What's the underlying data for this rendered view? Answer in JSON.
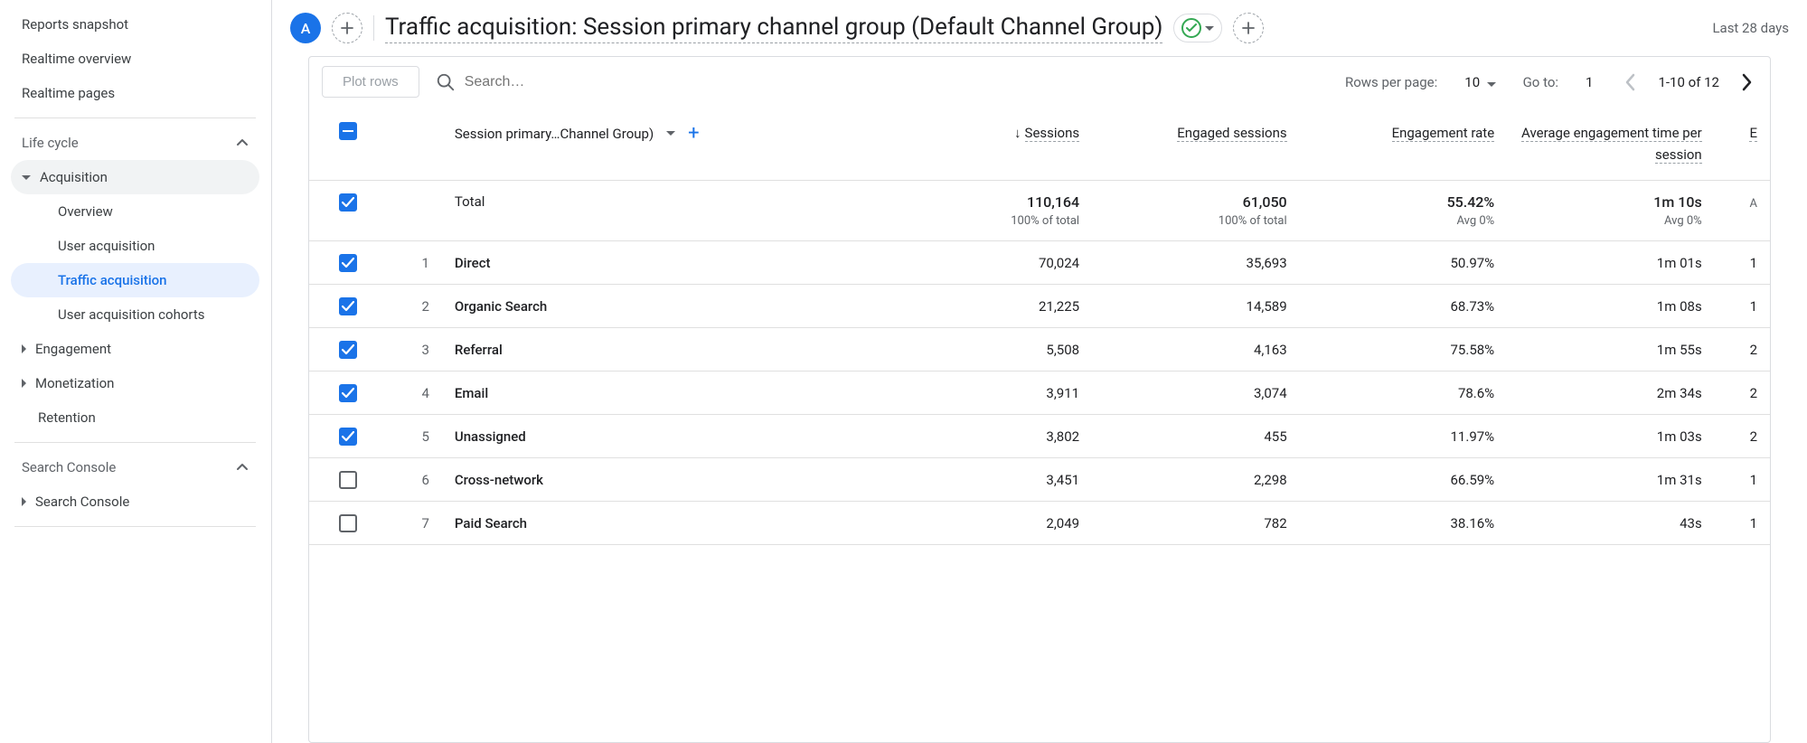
{
  "sidebar": {
    "items": [
      {
        "label": "Reports snapshot",
        "type": "item",
        "indent": 0
      },
      {
        "label": "Realtime overview",
        "type": "item",
        "indent": 0
      },
      {
        "label": "Realtime pages",
        "type": "item",
        "indent": 0
      },
      {
        "type": "divider"
      },
      {
        "label": "Life cycle",
        "type": "section",
        "expanded": true
      },
      {
        "label": "Acquisition",
        "type": "item",
        "indent": 1,
        "hasCaret": "down",
        "selected": true
      },
      {
        "label": "Overview",
        "type": "item",
        "indent": 2
      },
      {
        "label": "User acquisition",
        "type": "item",
        "indent": 2
      },
      {
        "label": "Traffic acquisition",
        "type": "item",
        "indent": 2,
        "active": true
      },
      {
        "label": "User acquisition cohorts",
        "type": "item",
        "indent": 2
      },
      {
        "label": "Engagement",
        "type": "item",
        "indent": 1,
        "hasCaret": "right"
      },
      {
        "label": "Monetization",
        "type": "item",
        "indent": 1,
        "hasCaret": "right"
      },
      {
        "label": "Retention",
        "type": "item",
        "indent": 1
      },
      {
        "type": "divider"
      },
      {
        "label": "Search Console",
        "type": "section",
        "expanded": true
      },
      {
        "label": "Search Console",
        "type": "item",
        "indent": 1,
        "hasCaret": "right"
      },
      {
        "type": "divider"
      }
    ]
  },
  "header": {
    "avatar": "A",
    "title": "Traffic acquisition: Session primary channel group (Default Channel Group)",
    "dateRange": "Last 28 days"
  },
  "toolbar": {
    "plotLabel": "Plot rows",
    "searchPlaceholder": "Search…",
    "rowsPerPageLabel": "Rows per page:",
    "rowsPerPageValue": "10",
    "goToLabel": "Go to:",
    "goToValue": "1",
    "pageInfo": "1-10 of 12"
  },
  "table": {
    "dimensionHeader": "Session primary…Channel Group)",
    "columns": [
      {
        "label": "Sessions",
        "sorted": true
      },
      {
        "label": "Engaged sessions"
      },
      {
        "label": "Engagement rate"
      },
      {
        "label": "Average engagement time per session"
      },
      {
        "label": "E"
      }
    ],
    "totalLabel": "Total",
    "totals": [
      {
        "main": "110,164",
        "sub": "100% of total"
      },
      {
        "main": "61,050",
        "sub": "100% of total"
      },
      {
        "main": "55.42%",
        "sub": "Avg 0%"
      },
      {
        "main": "1m 10s",
        "sub": "Avg 0%"
      },
      {
        "main": "",
        "sub": "A"
      }
    ],
    "rows": [
      {
        "idx": "1",
        "name": "Direct",
        "checked": true,
        "values": [
          "70,024",
          "35,693",
          "50.97%",
          "1m 01s",
          "1"
        ]
      },
      {
        "idx": "2",
        "name": "Organic Search",
        "checked": true,
        "values": [
          "21,225",
          "14,589",
          "68.73%",
          "1m 08s",
          "1"
        ]
      },
      {
        "idx": "3",
        "name": "Referral",
        "checked": true,
        "values": [
          "5,508",
          "4,163",
          "75.58%",
          "1m 55s",
          "2"
        ]
      },
      {
        "idx": "4",
        "name": "Email",
        "checked": true,
        "values": [
          "3,911",
          "3,074",
          "78.6%",
          "2m 34s",
          "2"
        ]
      },
      {
        "idx": "5",
        "name": "Unassigned",
        "checked": true,
        "values": [
          "3,802",
          "455",
          "11.97%",
          "1m 03s",
          "2"
        ]
      },
      {
        "idx": "6",
        "name": "Cross-network",
        "checked": false,
        "values": [
          "3,451",
          "2,298",
          "66.59%",
          "1m 31s",
          "1"
        ]
      },
      {
        "idx": "7",
        "name": "Paid Search",
        "checked": false,
        "values": [
          "2,049",
          "782",
          "38.16%",
          "43s",
          "1"
        ]
      }
    ]
  },
  "colors": {
    "primary": "#1a73e8",
    "success": "#34a853",
    "border": "#dadce0",
    "textSecondary": "#5f6368"
  }
}
